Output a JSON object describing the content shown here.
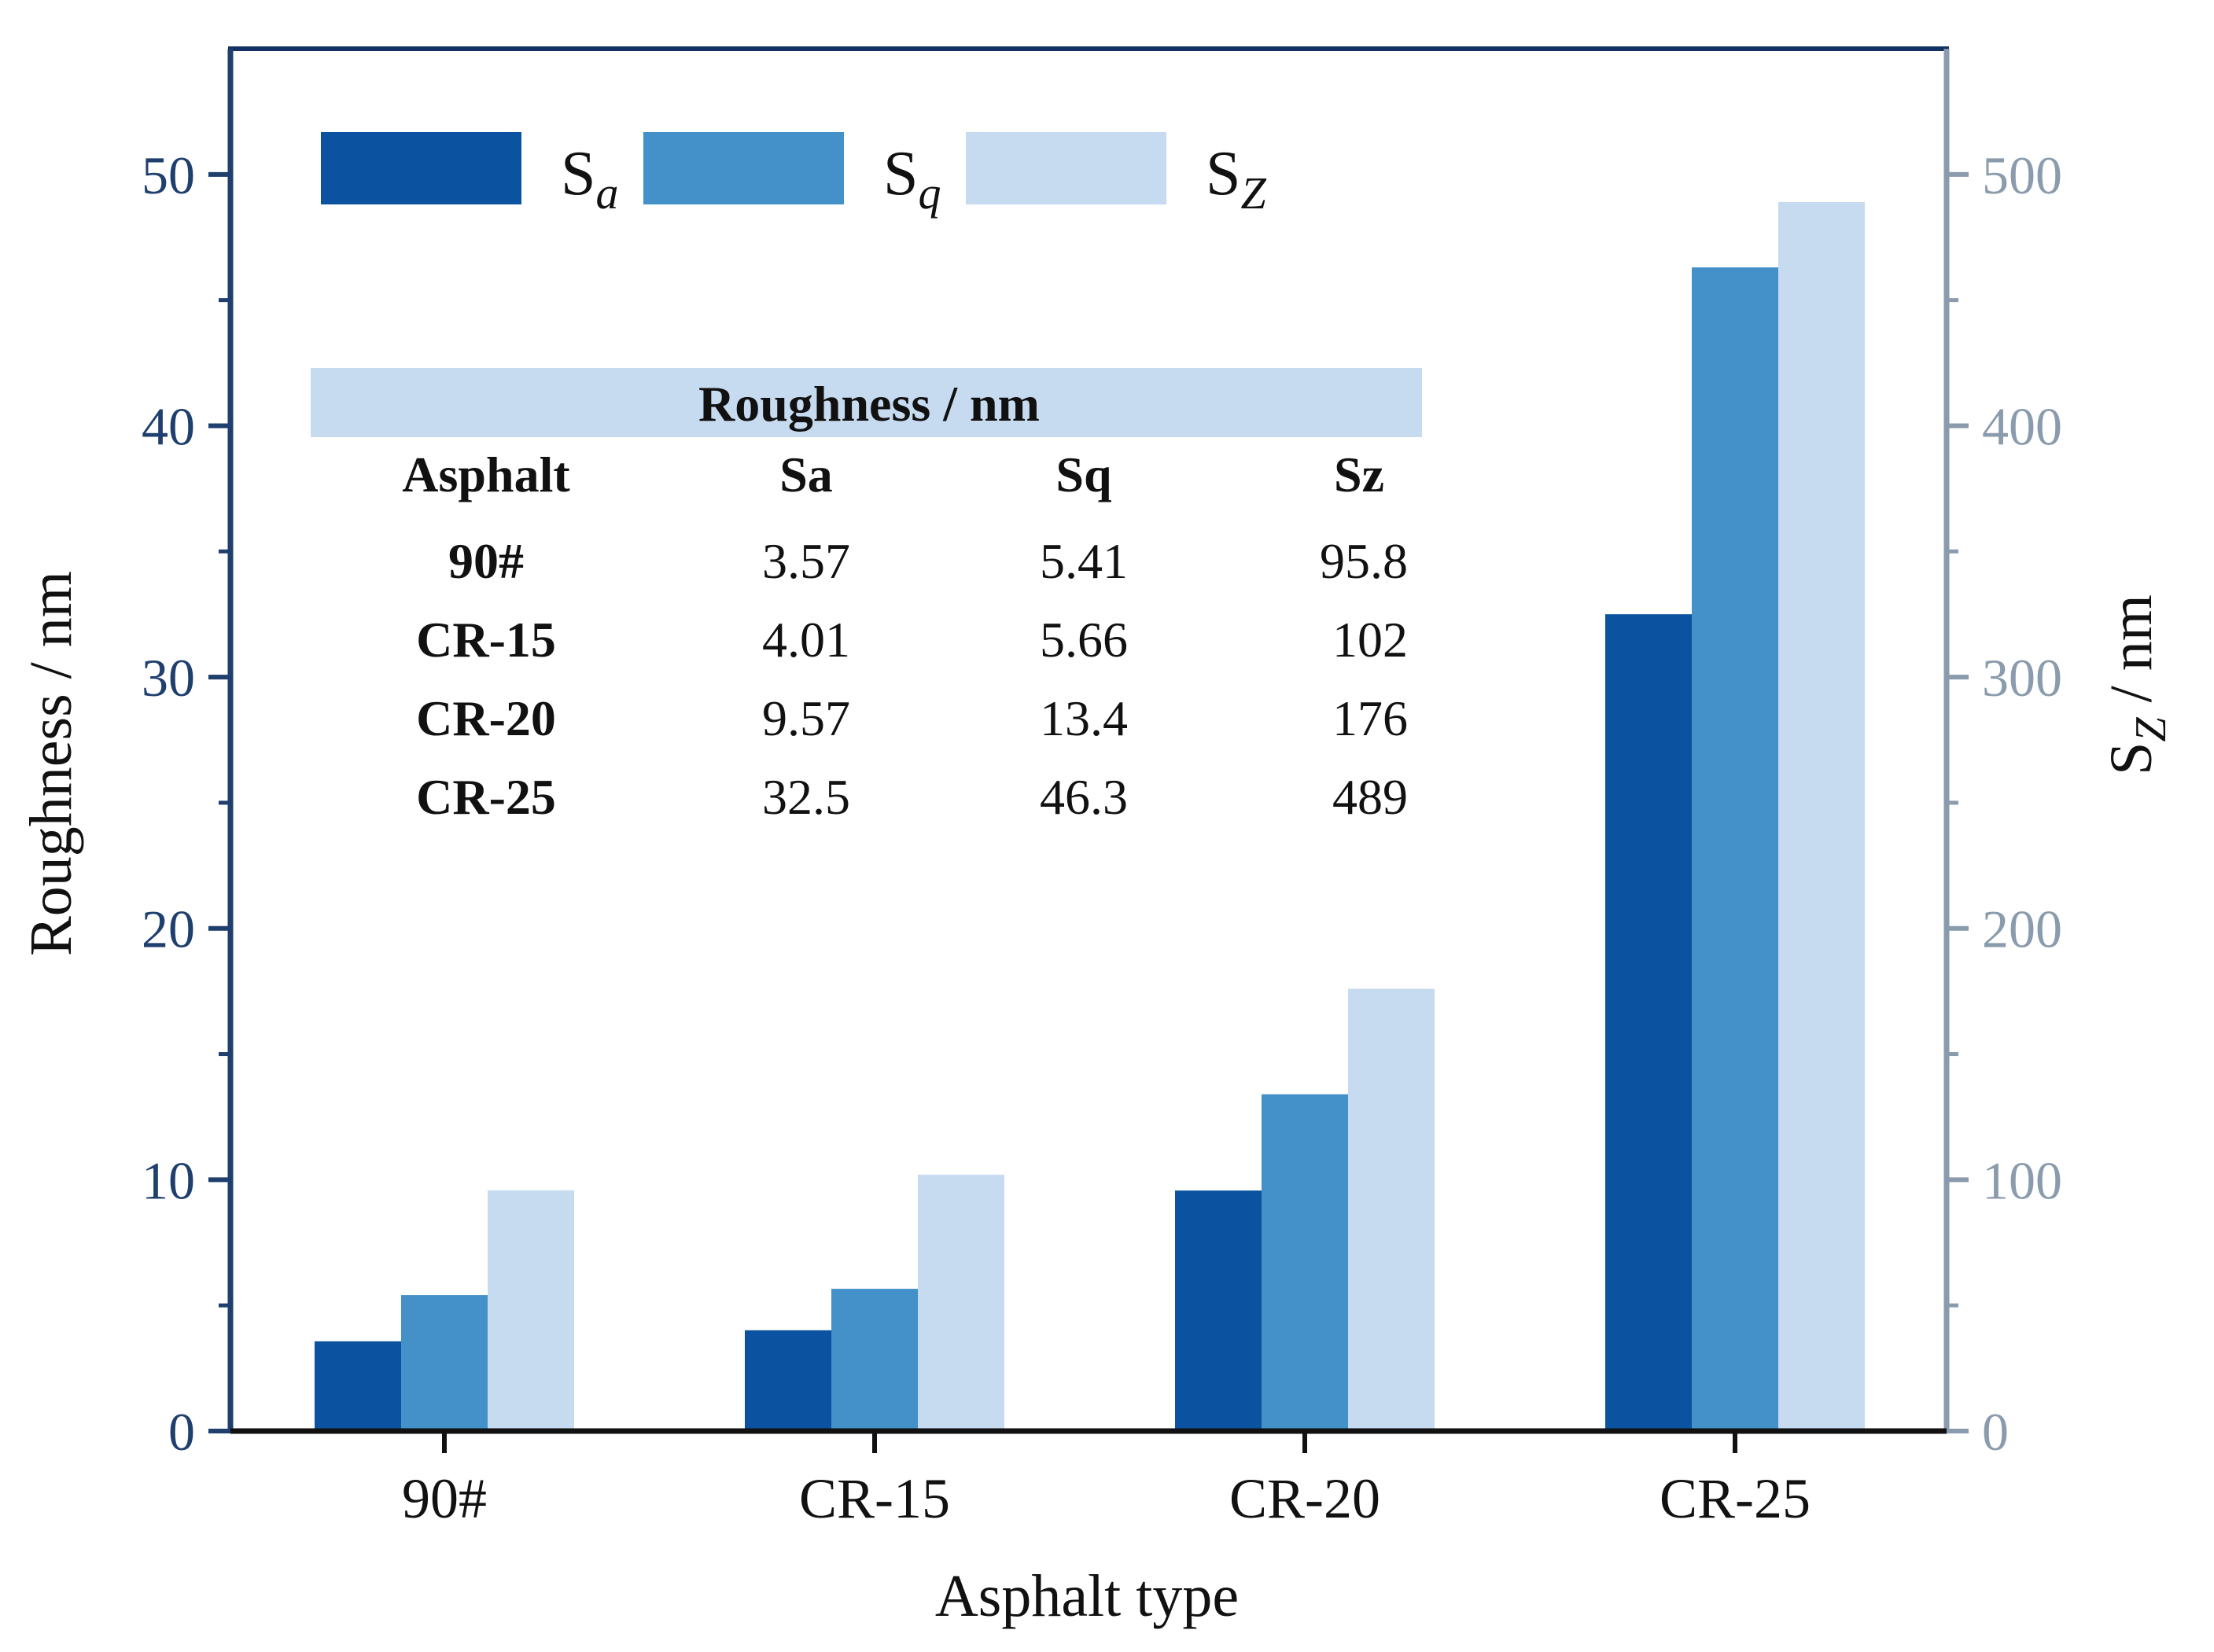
{
  "chart_data": {
    "type": "bar",
    "categories": [
      "90#",
      "CR-15",
      "CR-20",
      "CR-25"
    ],
    "xlabel": "Asphalt type",
    "ylabel": "Roughness / nm",
    "y2label": {
      "main": "S",
      "sub": "Z",
      "suffix": " / nm"
    },
    "ylim": [
      0,
      55
    ],
    "y2lim": [
      0,
      550
    ],
    "yticks": [
      0,
      10,
      20,
      30,
      40,
      50
    ],
    "y2ticks": [
      0,
      100,
      200,
      300,
      400,
      500
    ],
    "series": [
      {
        "name": "S",
        "sub": "a",
        "axis": "left",
        "color": "#0B53A0",
        "values": [
          3.57,
          4.01,
          9.57,
          32.5
        ]
      },
      {
        "name": "S",
        "sub": "q",
        "axis": "left",
        "color": "#4391C8",
        "values": [
          5.41,
          5.66,
          13.4,
          46.3
        ]
      },
      {
        "name": "S",
        "sub": "Z",
        "axis": "right",
        "color": "#C6DBEF",
        "values": [
          95.8,
          102,
          176,
          489
        ]
      }
    ],
    "legend_position": "top-left",
    "axis_colors": {
      "left": "#1F3F6E",
      "right": "#8A9BAD",
      "frame": "#123063"
    },
    "inset_table": {
      "title": "Roughness / nm",
      "header": [
        "Asphalt",
        "Sa",
        "Sq",
        "Sz"
      ],
      "rows": [
        [
          "90#",
          "3.57",
          "5.41",
          "95.8"
        ],
        [
          "CR-15",
          "4.01",
          "5.66",
          "102"
        ],
        [
          "CR-20",
          "9.57",
          "13.4",
          "176"
        ],
        [
          "CR-25",
          "32.5",
          "46.3",
          "489"
        ]
      ],
      "title_bg": "#C6DBEF"
    }
  }
}
